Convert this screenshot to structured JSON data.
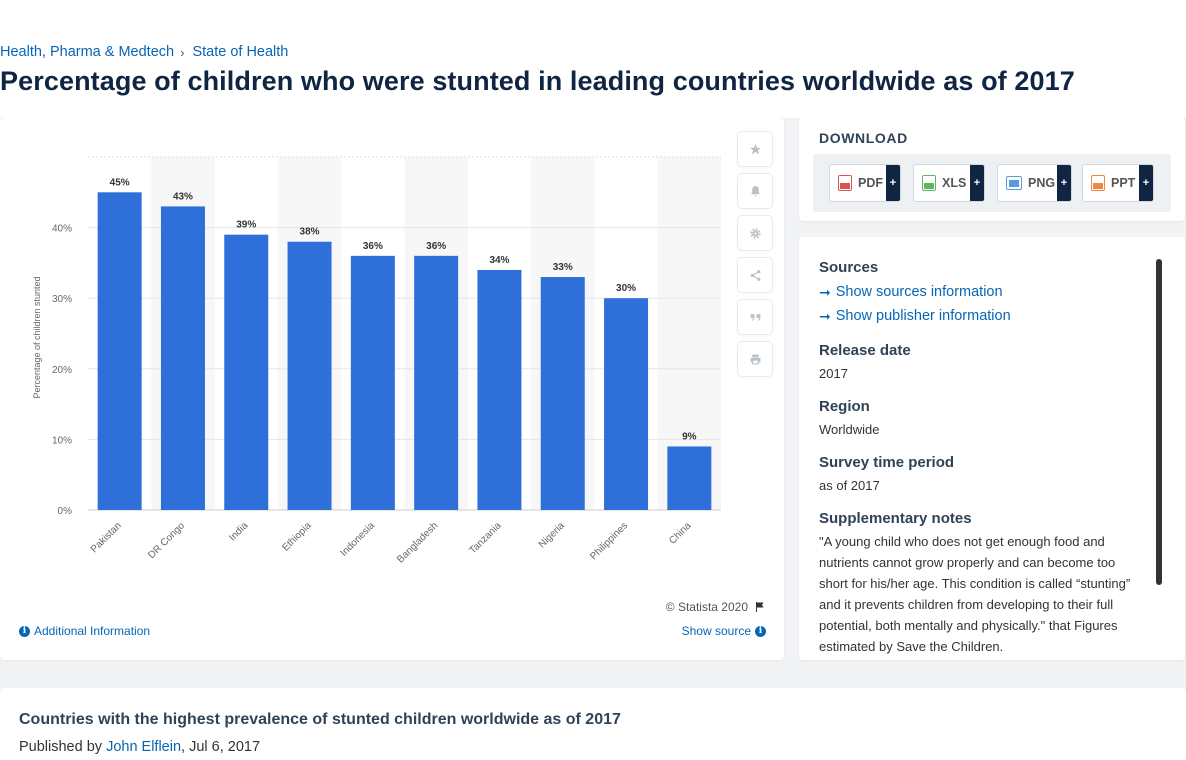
{
  "breadcrumb": {
    "items": [
      "Health, Pharma & Medtech",
      "State of Health"
    ],
    "separator": "›"
  },
  "page_title": "Percentage of children who were stunted in leading countries worldwide as of 2017",
  "chart_data": {
    "type": "bar",
    "categories": [
      "Pakistan",
      "DR Congo",
      "India",
      "Ethiopia",
      "Indonesia",
      "Bangladesh",
      "Tanzania",
      "Nigeria",
      "Philippines",
      "China"
    ],
    "values": [
      45,
      43,
      39,
      38,
      36,
      36,
      34,
      33,
      30,
      9
    ],
    "data_labels": [
      "45%",
      "43%",
      "39%",
      "38%",
      "36%",
      "36%",
      "34%",
      "33%",
      "30%",
      "9%"
    ],
    "ylabel": "Percentage of children stunted",
    "yticks": [
      "0%",
      "10%",
      "20%",
      "30%",
      "40%"
    ],
    "ylim": [
      0,
      50
    ],
    "grid": true,
    "bar_color": "#2f6fd9"
  },
  "chart_footer": {
    "copyright": "© Statista 2020",
    "additional_info": "Additional Information",
    "show_source": "Show source"
  },
  "tools": [
    "star-icon",
    "bell-icon",
    "gear-icon",
    "share-icon",
    "quote-icon",
    "print-icon"
  ],
  "download": {
    "heading": "DOWNLOAD",
    "buttons": [
      {
        "label": "PDF",
        "color": "#d9534f"
      },
      {
        "label": "XLS",
        "color": "#5cb85c"
      },
      {
        "label": "PNG",
        "color": "#5b9bd5"
      },
      {
        "label": "PPT",
        "color": "#f0883e"
      }
    ],
    "plus": "+"
  },
  "info": {
    "sources_heading": "Sources",
    "show_sources": "Show sources information",
    "show_publisher": "Show publisher information",
    "release_heading": "Release date",
    "release_value": "2017",
    "region_heading": "Region",
    "region_value": "Worldwide",
    "survey_heading": "Survey time period",
    "survey_value": "as of 2017",
    "notes_heading": "Supplementary notes",
    "notes_value": "\"A young child who does not get enough food and nutrients cannot grow properly and can become too short for his/her age. This condition is called “stunting” and it prevents children from developing to their full potential, both mentally and physically.\" that Figures estimated by Save the Children."
  },
  "bottom": {
    "title": "Countries with the highest prevalence of stunted children worldwide as of 2017",
    "published_by": "Published by",
    "author": "John Elflein",
    "date": ", Jul 6, 2017"
  },
  "colors": {
    "accent": "#0666b5",
    "navy": "#0f2542"
  }
}
